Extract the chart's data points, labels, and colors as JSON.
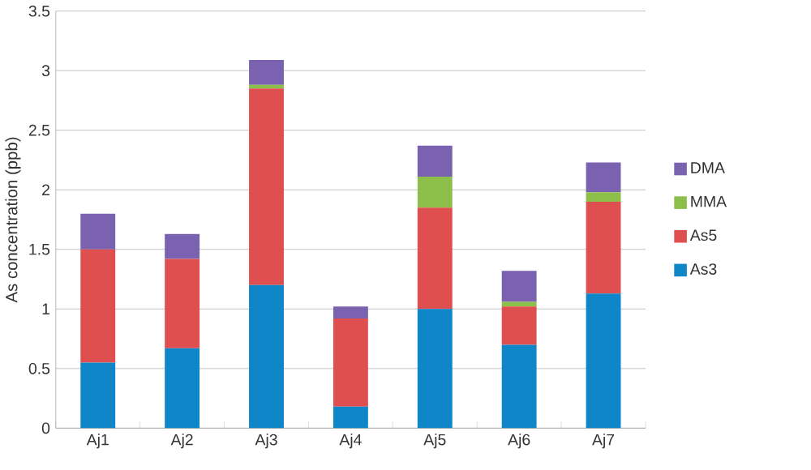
{
  "chart_data": {
    "type": "bar",
    "stacked": true,
    "ylabel": "As concentration (ppb)",
    "categories": [
      "Aj1",
      "Aj2",
      "Aj3",
      "Aj4",
      "Aj5",
      "Aj6",
      "Aj7"
    ],
    "series": [
      {
        "name": "As3",
        "color": "#0e86c8",
        "values": [
          0.55,
          0.67,
          1.2,
          0.18,
          1.0,
          0.7,
          1.13
        ]
      },
      {
        "name": "As5",
        "color": "#e04f4f",
        "values": [
          0.95,
          0.75,
          1.65,
          0.74,
          0.85,
          0.32,
          0.77
        ]
      },
      {
        "name": "MMA",
        "color": "#8cbf4a",
        "values": [
          0,
          0,
          0.03,
          0,
          0.26,
          0.04,
          0.08
        ]
      },
      {
        "name": "DMA",
        "color": "#7b62b0",
        "values": [
          0.3,
          0.21,
          0.21,
          0.1,
          0.26,
          0.26,
          0.25
        ]
      }
    ],
    "ylim": [
      0,
      3.5
    ],
    "yticks": [
      0,
      0.5,
      1,
      1.5,
      2,
      2.5,
      3,
      3.5
    ],
    "grid": "y",
    "legend": "right"
  }
}
